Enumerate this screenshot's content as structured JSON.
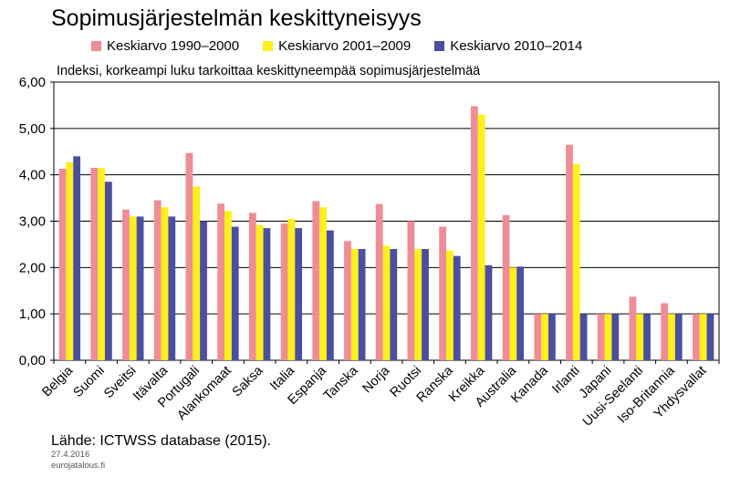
{
  "header": {
    "title": "Sopimusjärjestelmän keskittyneisyys",
    "subtitle": "Indeksi, korkeampi luku tarkoittaa keskittyneempää sopimusjärjestelmää"
  },
  "footer": {
    "source": "Lähde: ICTWSS database (2015).",
    "date": "27.4.2016",
    "site": "eurojatalous.fi"
  },
  "chart_data": {
    "type": "bar",
    "title": "Sopimusjärjestelmän keskittyneisyys",
    "ylabel": "Indeksi, korkeampi luku tarkoittaa keskittyneempää sopimusjärjestelmää",
    "ylim": [
      0,
      6
    ],
    "yticks": [
      "0,00",
      "1,00",
      "2,00",
      "3,00",
      "4,00",
      "5,00",
      "6,00"
    ],
    "grid": true,
    "legend_position": "top",
    "categories": [
      "Belgia",
      "Suomi",
      "Sveitsi",
      "Itävalta",
      "Portugali",
      "Alankomaat",
      "Saksa",
      "Italia",
      "Espanja",
      "Tanska",
      "Norja",
      "Ruotsi",
      "Ranska",
      "Kreikka",
      "Australia",
      "Kanada",
      "Irlanti",
      "Japani",
      "Uusi-Seelanti",
      "Iso-Britannia",
      "Yhdysvallat"
    ],
    "series": [
      {
        "name": "Keskiarvo 1990–2000",
        "color": "#f08c96",
        "values": [
          4.13,
          4.15,
          3.25,
          3.45,
          4.47,
          3.38,
          3.18,
          2.95,
          3.43,
          2.57,
          3.37,
          3.0,
          2.88,
          5.48,
          3.13,
          1.0,
          4.65,
          1.0,
          1.37,
          1.23,
          1.0
        ]
      },
      {
        "name": "Keskiarvo 2001–2009",
        "color": "#ffef1a",
        "values": [
          4.27,
          4.15,
          3.1,
          3.3,
          3.75,
          3.22,
          2.92,
          3.05,
          3.3,
          2.4,
          2.47,
          2.4,
          2.37,
          5.3,
          2.0,
          1.0,
          4.23,
          1.0,
          1.0,
          1.0,
          1.0
        ]
      },
      {
        "name": "Keskiarvo 2010–2014",
        "color": "#4b4f9e",
        "values": [
          4.4,
          3.85,
          3.1,
          3.1,
          3.0,
          2.88,
          2.85,
          2.85,
          2.8,
          2.4,
          2.4,
          2.4,
          2.25,
          2.05,
          2.02,
          1.0,
          1.0,
          1.0,
          1.0,
          1.0,
          1.0
        ]
      }
    ]
  }
}
